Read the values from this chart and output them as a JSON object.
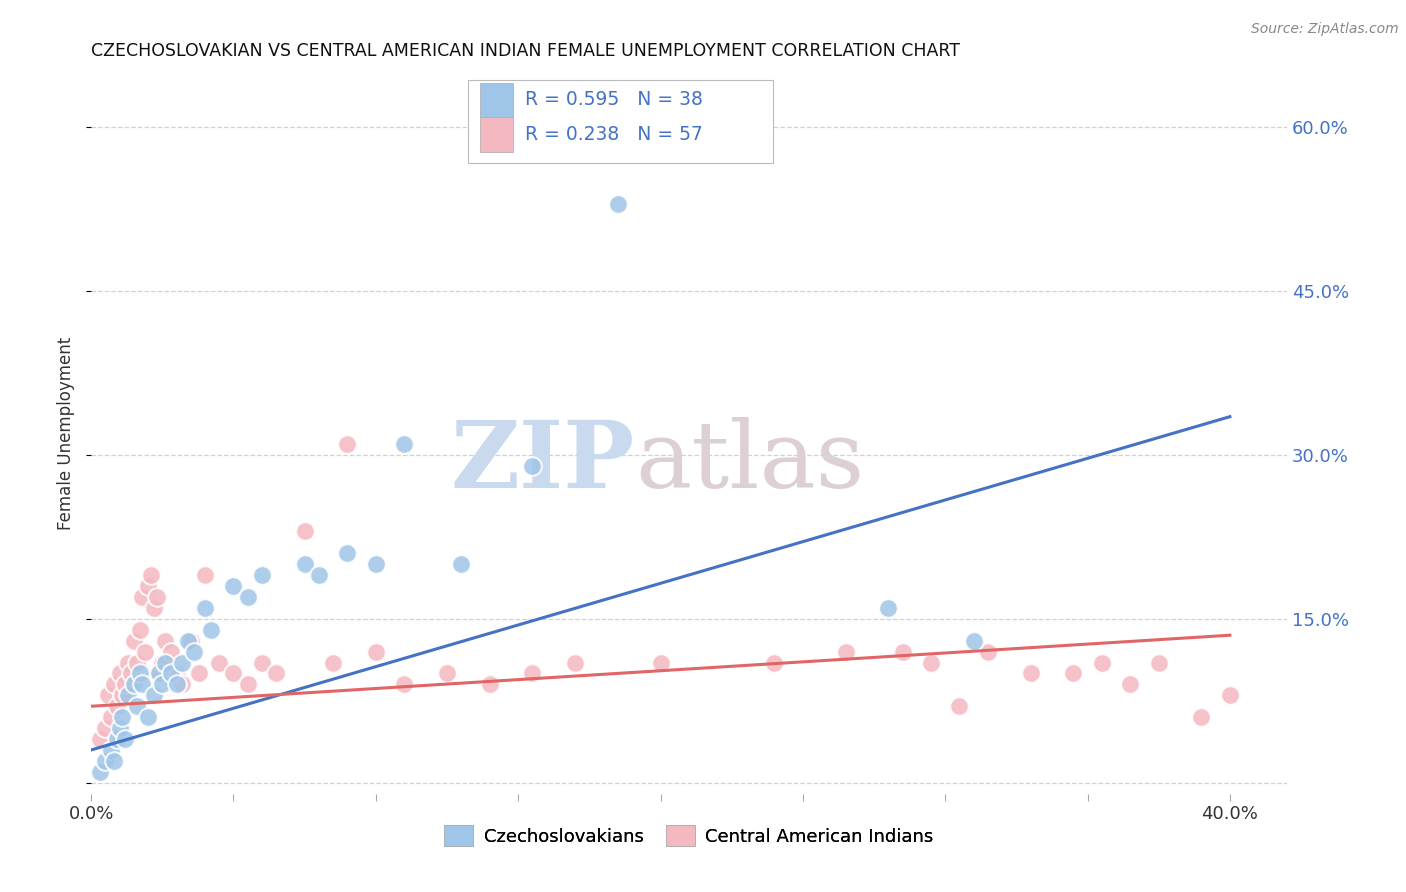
{
  "title": "CZECHOSLOVAKIAN VS CENTRAL AMERICAN INDIAN FEMALE UNEMPLOYMENT CORRELATION CHART",
  "source": "Source: ZipAtlas.com",
  "ylabel": "Female Unemployment",
  "yticks": [
    0.0,
    0.15,
    0.3,
    0.45,
    0.6
  ],
  "ytick_labels": [
    "",
    "15.0%",
    "30.0%",
    "45.0%",
    "60.0%"
  ],
  "xlim": [
    0.0,
    0.42
  ],
  "ylim": [
    -0.01,
    0.65
  ],
  "blue_color": "#9fc5e8",
  "pink_color": "#f4b8c1",
  "blue_line_color": "#4472c4",
  "pink_line_color": "#e06666",
  "text_blue_color": "#4472c4",
  "legend_r_blue": "R = 0.595",
  "legend_n_blue": "N = 38",
  "legend_r_pink": "R = 0.238",
  "legend_n_pink": "N = 57",
  "blue_scatter_x": [
    0.003,
    0.005,
    0.007,
    0.008,
    0.009,
    0.01,
    0.011,
    0.012,
    0.013,
    0.015,
    0.016,
    0.017,
    0.018,
    0.02,
    0.022,
    0.024,
    0.025,
    0.026,
    0.028,
    0.03,
    0.032,
    0.034,
    0.036,
    0.04,
    0.042,
    0.05,
    0.055,
    0.06,
    0.075,
    0.08,
    0.09,
    0.1,
    0.11,
    0.13,
    0.155,
    0.185,
    0.28,
    0.31
  ],
  "blue_scatter_y": [
    0.01,
    0.02,
    0.03,
    0.02,
    0.04,
    0.05,
    0.06,
    0.04,
    0.08,
    0.09,
    0.07,
    0.1,
    0.09,
    0.06,
    0.08,
    0.1,
    0.09,
    0.11,
    0.1,
    0.09,
    0.11,
    0.13,
    0.12,
    0.16,
    0.14,
    0.18,
    0.17,
    0.19,
    0.2,
    0.19,
    0.21,
    0.2,
    0.31,
    0.2,
    0.29,
    0.53,
    0.16,
    0.13
  ],
  "pink_scatter_x": [
    0.003,
    0.005,
    0.006,
    0.007,
    0.008,
    0.009,
    0.01,
    0.011,
    0.012,
    0.013,
    0.014,
    0.015,
    0.016,
    0.017,
    0.018,
    0.019,
    0.02,
    0.021,
    0.022,
    0.023,
    0.024,
    0.025,
    0.026,
    0.028,
    0.03,
    0.032,
    0.035,
    0.038,
    0.04,
    0.045,
    0.05,
    0.055,
    0.06,
    0.065,
    0.075,
    0.085,
    0.09,
    0.1,
    0.11,
    0.125,
    0.14,
    0.155,
    0.17,
    0.2,
    0.24,
    0.265,
    0.285,
    0.295,
    0.305,
    0.315,
    0.33,
    0.345,
    0.355,
    0.365,
    0.375,
    0.39,
    0.4
  ],
  "pink_scatter_y": [
    0.04,
    0.05,
    0.08,
    0.06,
    0.09,
    0.07,
    0.1,
    0.08,
    0.09,
    0.11,
    0.1,
    0.13,
    0.11,
    0.14,
    0.17,
    0.12,
    0.18,
    0.19,
    0.16,
    0.17,
    0.1,
    0.11,
    0.13,
    0.12,
    0.1,
    0.09,
    0.13,
    0.1,
    0.19,
    0.11,
    0.1,
    0.09,
    0.11,
    0.1,
    0.23,
    0.11,
    0.31,
    0.12,
    0.09,
    0.1,
    0.09,
    0.1,
    0.11,
    0.11,
    0.11,
    0.12,
    0.12,
    0.11,
    0.07,
    0.12,
    0.1,
    0.1,
    0.11,
    0.09,
    0.11,
    0.06,
    0.08
  ],
  "blue_trend_x": [
    0.0,
    0.4
  ],
  "blue_trend_y": [
    0.03,
    0.335
  ],
  "pink_trend_x": [
    0.0,
    0.4
  ],
  "pink_trend_y": [
    0.07,
    0.135
  ],
  "bg_color": "#ffffff",
  "grid_color": "#cccccc",
  "right_axis_color": "#4472c4"
}
